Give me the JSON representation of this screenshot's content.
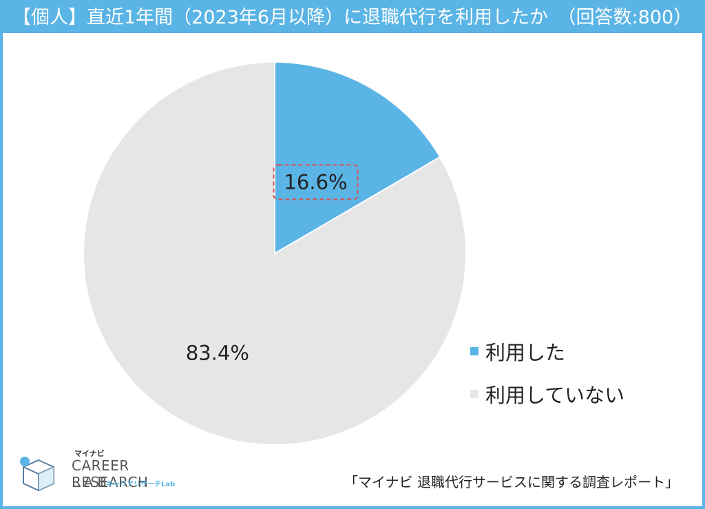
{
  "title": "【個人】直近1年間（2023年6月以降）に退職代行を利用したか　（回答数:800）",
  "chart_data": {
    "type": "pie",
    "title": "【個人】直近1年間（2023年6月以降）に退職代行を利用したか　（回答数:800）",
    "slices": [
      {
        "label": "利用した",
        "value": 16.6,
        "display": "16.6%",
        "color": "#5ab4e5",
        "highlighted": true
      },
      {
        "label": "利用していない",
        "value": 83.4,
        "display": "83.4%",
        "color": "#e6e6e6"
      }
    ],
    "start": "12 o'clock",
    "direction": "clockwise",
    "legend_position": "right"
  },
  "legend": {
    "items": [
      {
        "label": "利用した",
        "color": "#5ab4e5"
      },
      {
        "label": "利用していない",
        "color": "#e6e6e6"
      }
    ]
  },
  "logo": {
    "kana": "マイナビ",
    "line1": "CAREER RESEARCH",
    "line2": "LAB",
    "sub": "キャリアリサーチLab"
  },
  "source": "「マイナビ 退職代行サービスに関する調査レポート」",
  "colors": {
    "accent": "#5ab4e5",
    "other": "#e6e6e6",
    "highlight_border": "#d9534f"
  }
}
